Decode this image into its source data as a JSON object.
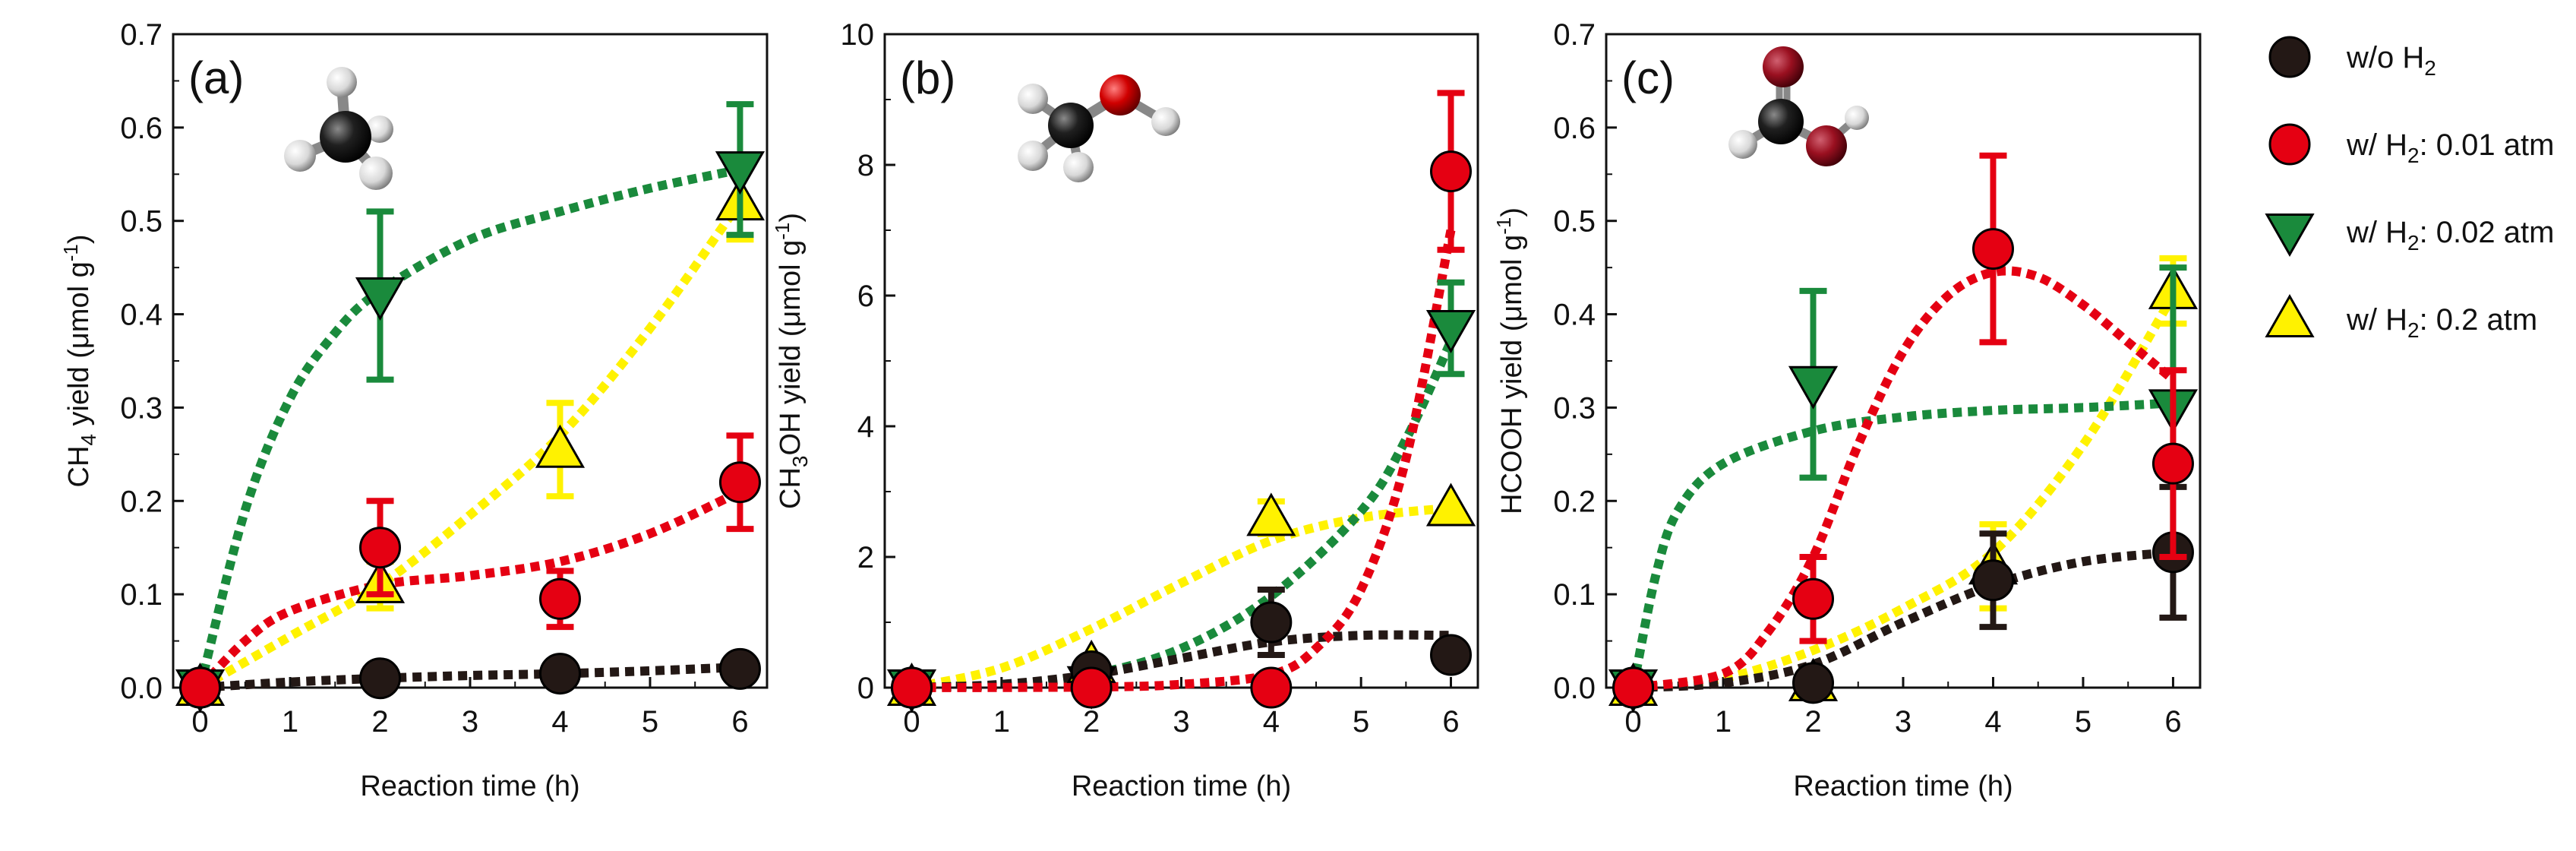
{
  "chart_data": [
    {
      "panel_label": "(a)",
      "type": "scatter",
      "xlabel": "Reaction time (h)",
      "ylabel": {
        "pre": "CH",
        "sub": "4",
        "post": " yield (μmol g",
        "sup": "-1",
        "end": ")"
      },
      "x_ticks": [
        "0",
        "1",
        "2",
        "3",
        "4",
        "5",
        "6"
      ],
      "y_ticks": [
        "0.0",
        "0.1",
        "0.2",
        "0.3",
        "0.4",
        "0.5",
        "0.6",
        "0.7"
      ],
      "xlim": [
        -0.3,
        6.3
      ],
      "ylim": [
        0,
        0.7
      ],
      "molecule": "methane-icon",
      "series": [
        {
          "key": "wo",
          "x": [
            0,
            2,
            4,
            6
          ],
          "y": [
            0,
            0.01,
            0.015,
            0.02
          ],
          "err": [
            0,
            0,
            0,
            0
          ],
          "fit": [
            [
              0,
              0
            ],
            [
              1,
              0.006
            ],
            [
              2,
              0.01
            ],
            [
              3,
              0.013
            ],
            [
              4,
              0.015
            ],
            [
              5,
              0.018
            ],
            [
              6,
              0.022
            ]
          ]
        },
        {
          "key": "h001",
          "x": [
            0,
            2,
            4,
            6
          ],
          "y": [
            0,
            0.15,
            0.095,
            0.22
          ],
          "err": [
            0,
            0.05,
            0.03,
            0.05
          ],
          "fit": [
            [
              0,
              0
            ],
            [
              0.5,
              0.05
            ],
            [
              1,
              0.082
            ],
            [
              2,
              0.11
            ],
            [
              3,
              0.12
            ],
            [
              4,
              0.135
            ],
            [
              5,
              0.165
            ],
            [
              6,
              0.21
            ]
          ]
        },
        {
          "key": "h002",
          "x": [
            0,
            2,
            6
          ],
          "y": [
            0,
            0.42,
            0.555
          ],
          "err": [
            0,
            0.09,
            0.07
          ],
          "fit": [
            [
              0,
              0
            ],
            [
              0.5,
              0.19
            ],
            [
              1,
              0.31
            ],
            [
              1.5,
              0.38
            ],
            [
              2,
              0.425
            ],
            [
              3,
              0.48
            ],
            [
              4,
              0.51
            ],
            [
              5,
              0.535
            ],
            [
              6,
              0.555
            ]
          ]
        },
        {
          "key": "h02",
          "x": [
            0,
            2,
            4,
            6
          ],
          "y": [
            0,
            0.11,
            0.255,
            0.52
          ],
          "err": [
            0,
            0.025,
            0.05,
            0.04
          ],
          "fit": [
            [
              0,
              0
            ],
            [
              1,
              0.055
            ],
            [
              2,
              0.11
            ],
            [
              3,
              0.185
            ],
            [
              4,
              0.27
            ],
            [
              5,
              0.385
            ],
            [
              6,
              0.52
            ]
          ]
        }
      ]
    },
    {
      "panel_label": "(b)",
      "type": "scatter",
      "xlabel": "Reaction time (h)",
      "ylabel": {
        "pre": "CH",
        "sub": "3",
        "post": "OH yield (μmol g",
        "sup": "-1",
        "end": ")"
      },
      "x_ticks": [
        "0",
        "1",
        "2",
        "3",
        "4",
        "5",
        "6"
      ],
      "y_ticks": [
        "0",
        "2",
        "4",
        "6",
        "8",
        "10"
      ],
      "xlim": [
        -0.3,
        6.3
      ],
      "ylim": [
        0,
        10
      ],
      "molecule": "methanol-icon",
      "series": [
        {
          "key": "wo",
          "x": [
            0,
            2,
            4,
            6
          ],
          "y": [
            0,
            0.25,
            1.0,
            0.5
          ],
          "err": [
            0,
            0,
            0.5,
            0
          ],
          "fit": [
            [
              0,
              0
            ],
            [
              1,
              0.05
            ],
            [
              2,
              0.2
            ],
            [
              3,
              0.45
            ],
            [
              4,
              0.7
            ],
            [
              5,
              0.8
            ],
            [
              6,
              0.8
            ]
          ]
        },
        {
          "key": "h001",
          "x": [
            0,
            2,
            4,
            6
          ],
          "y": [
            0,
            0,
            0,
            7.9
          ],
          "err": [
            0,
            0,
            0,
            1.2
          ],
          "fit": [
            [
              0,
              0
            ],
            [
              2,
              0.01
            ],
            [
              3,
              0.05
            ],
            [
              4,
              0.2
            ],
            [
              4.5,
              0.6
            ],
            [
              5,
              1.5
            ],
            [
              5.5,
              3.5
            ],
            [
              6,
              7.0
            ]
          ]
        },
        {
          "key": "h002",
          "x": [
            0,
            2,
            6
          ],
          "y": [
            0,
            0.05,
            5.5
          ],
          "err": [
            0,
            0,
            0.7
          ],
          "fit": [
            [
              0,
              0
            ],
            [
              1,
              0.04
            ],
            [
              2,
              0.2
            ],
            [
              3,
              0.6
            ],
            [
              4,
              1.4
            ],
            [
              5,
              2.7
            ],
            [
              5.5,
              3.8
            ],
            [
              6,
              5.3
            ]
          ]
        },
        {
          "key": "h02",
          "x": [
            0,
            2,
            4,
            6
          ],
          "y": [
            0,
            0.35,
            2.6,
            2.75
          ],
          "err": [
            0,
            0,
            0.25,
            0
          ],
          "fit": [
            [
              0,
              0
            ],
            [
              1,
              0.3
            ],
            [
              2,
              0.9
            ],
            [
              3,
              1.6
            ],
            [
              4,
              2.25
            ],
            [
              5,
              2.6
            ],
            [
              6,
              2.75
            ]
          ]
        }
      ]
    },
    {
      "panel_label": "(c)",
      "type": "scatter",
      "xlabel": "Reaction time (h)",
      "ylabel": {
        "pre": "HCOOH yield (μmol g",
        "sub": "",
        "post": "",
        "sup": "-1",
        "end": ")"
      },
      "x_ticks": [
        "0",
        "1",
        "2",
        "3",
        "4",
        "5",
        "6"
      ],
      "y_ticks": [
        "0.0",
        "0.1",
        "0.2",
        "0.3",
        "0.4",
        "0.5",
        "0.6",
        "0.7"
      ],
      "xlim": [
        -0.3,
        6.3
      ],
      "ylim": [
        0,
        0.7
      ],
      "molecule": "formic-acid-icon",
      "series": [
        {
          "key": "wo",
          "x": [
            0,
            2,
            4,
            6
          ],
          "y": [
            0,
            0.005,
            0.115,
            0.145
          ],
          "err": [
            0,
            0,
            0.05,
            0.07
          ],
          "fit": [
            [
              0,
              0
            ],
            [
              1,
              0.005
            ],
            [
              2,
              0.025
            ],
            [
              3,
              0.07
            ],
            [
              4,
              0.11
            ],
            [
              5,
              0.135
            ],
            [
              6,
              0.145
            ]
          ]
        },
        {
          "key": "h001",
          "x": [
            0,
            2,
            4,
            6
          ],
          "y": [
            0,
            0.095,
            0.47,
            0.24
          ],
          "err": [
            0,
            0.045,
            0.1,
            0.1
          ],
          "fit": [
            [
              0,
              0
            ],
            [
              1,
              0.015
            ],
            [
              1.5,
              0.06
            ],
            [
              2,
              0.14
            ],
            [
              2.5,
              0.26
            ],
            [
              3,
              0.36
            ],
            [
              3.5,
              0.42
            ],
            [
              4,
              0.445
            ],
            [
              4.5,
              0.44
            ],
            [
              5,
              0.41
            ],
            [
              5.5,
              0.37
            ],
            [
              6,
              0.33
            ]
          ]
        },
        {
          "key": "h002",
          "x": [
            0,
            2,
            6
          ],
          "y": [
            0,
            0.325,
            0.3
          ],
          "err": [
            0,
            0.1,
            0.15
          ],
          "fit": [
            [
              0,
              0
            ],
            [
              0.25,
              0.12
            ],
            [
              0.5,
              0.19
            ],
            [
              1,
              0.24
            ],
            [
              2,
              0.275
            ],
            [
              3,
              0.29
            ],
            [
              4,
              0.297
            ],
            [
              5,
              0.3
            ],
            [
              6,
              0.305
            ]
          ]
        },
        {
          "key": "h02",
          "x": [
            0,
            2,
            4,
            6
          ],
          "y": [
            0,
            0.005,
            0.13,
            0.425
          ],
          "err": [
            0,
            0,
            0.045,
            0.035
          ],
          "fit": [
            [
              0,
              0
            ],
            [
              1,
              0.01
            ],
            [
              2,
              0.04
            ],
            [
              3,
              0.085
            ],
            [
              4,
              0.145
            ],
            [
              5,
              0.26
            ],
            [
              6,
              0.42
            ]
          ]
        }
      ]
    }
  ],
  "legend": [
    {
      "key": "wo",
      "marker": "circle",
      "color": "#231815",
      "pre": "w/o H",
      "sub": "2",
      "post": ""
    },
    {
      "key": "h001",
      "marker": "circle",
      "color": "#e50012",
      "pre": "w/ H",
      "sub": "2",
      "post": ": 0.01 atm"
    },
    {
      "key": "h002",
      "marker": "triangle-down",
      "color": "#1a8a3c",
      "pre": "w/ H",
      "sub": "2",
      "post": ": 0.02 atm"
    },
    {
      "key": "h02",
      "marker": "triangle-up",
      "color": "#fff200",
      "pre": "w/ H",
      "sub": "2",
      "post": ": 0.2 atm"
    }
  ],
  "colors": {
    "wo": "#231815",
    "h001": "#e50012",
    "h002": "#1a8a3c",
    "h02": "#fff200",
    "axis": "#111111"
  }
}
